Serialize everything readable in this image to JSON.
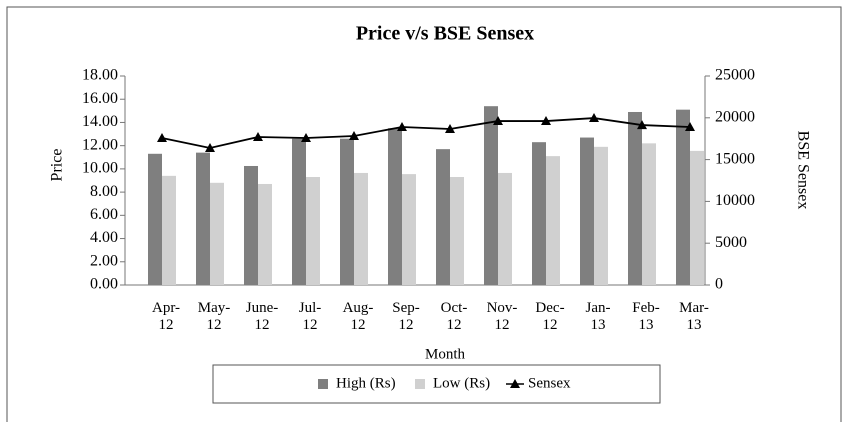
{
  "chart_data": {
    "type": "bar-line",
    "title": "Price v/s BSE Sensex",
    "x_label": "Month",
    "y_label": "Price",
    "y2_label": "BSE Sensex",
    "categories": [
      "Apr-12",
      "May-12",
      "June-12",
      "Jul-12",
      "Aug-12",
      "Sep-12",
      "Oct-12",
      "Nov-12",
      "Dec-12",
      "Jan-13",
      "Feb-13",
      "Mar-13"
    ],
    "series": [
      {
        "name": "High (Rs)",
        "type": "bar",
        "color": "#7f7f7f",
        "values": [
          11.3,
          11.4,
          10.25,
          12.6,
          12.6,
          13.5,
          11.7,
          15.4,
          12.3,
          12.7,
          14.9,
          15.1
        ]
      },
      {
        "name": "Low (Rs)",
        "type": "bar",
        "color": "#d0d0d0",
        "values": [
          9.4,
          8.8,
          8.7,
          9.3,
          9.65,
          9.55,
          9.3,
          9.65,
          11.1,
          11.9,
          12.2,
          11.55
        ]
      },
      {
        "name": "Sensex",
        "type": "line",
        "axis": "y2",
        "color": "#000000",
        "values": [
          17580,
          16390,
          17700,
          17580,
          17820,
          18900,
          18660,
          19610,
          19610,
          19970,
          19130,
          18900
        ]
      }
    ],
    "ylim": [
      0,
      18
    ],
    "yticks": [
      {
        "value": 0,
        "label": "0.00"
      },
      {
        "value": 2,
        "label": "2.00"
      },
      {
        "value": 4,
        "label": "4.00"
      },
      {
        "value": 6,
        "label": "6.00"
      },
      {
        "value": 8,
        "label": "8.00"
      },
      {
        "value": 10,
        "label": "10.00"
      },
      {
        "value": 12,
        "label": "12.00"
      },
      {
        "value": 14,
        "label": "14.00"
      },
      {
        "value": 16,
        "label": "16.00"
      },
      {
        "value": 18,
        "label": "18.00"
      }
    ],
    "y2lim": [
      0,
      25000
    ],
    "y2ticks": [
      0,
      5000,
      10000,
      15000,
      20000,
      25000
    ],
    "legend": "bottom"
  }
}
